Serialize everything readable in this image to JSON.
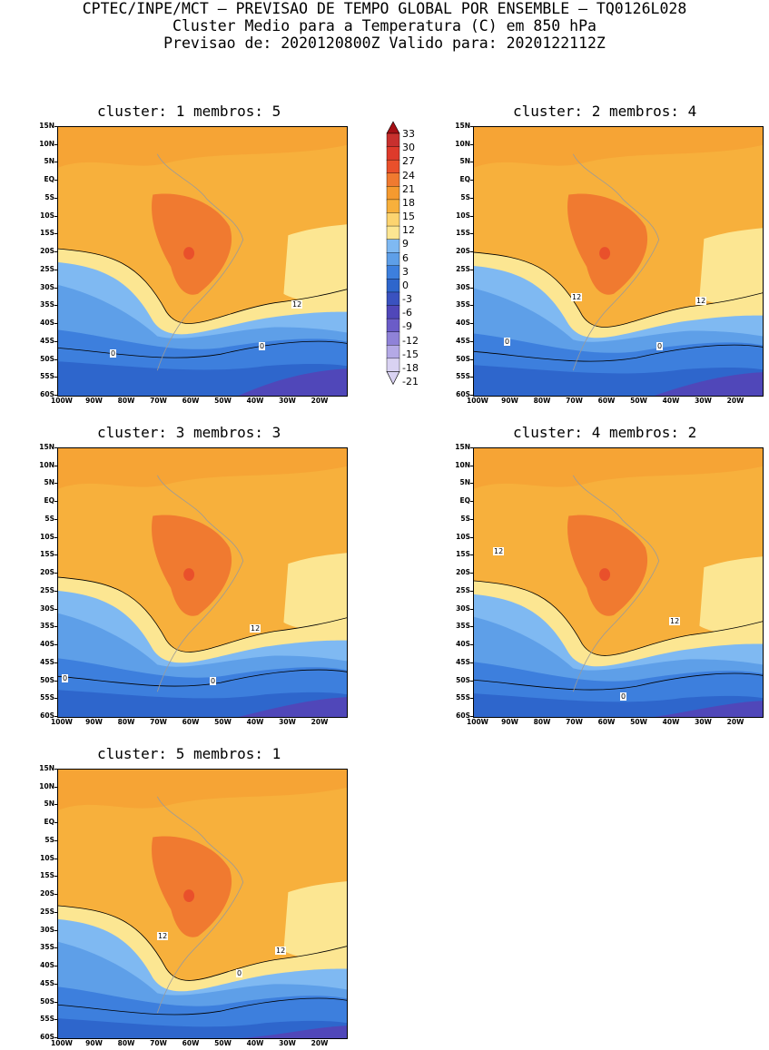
{
  "header": {
    "line1": "CPTEC/INPE/MCT – PREVISAO DE TEMPO GLOBAL POR ENSEMBLE – TQ0126L028",
    "line2": "Cluster Medio para a Temperatura (C) em 850 hPa",
    "line3": "Previsao de: 2020120800Z    Valido para: 2020122112Z"
  },
  "lat_labels": [
    "15N",
    "10N",
    "5N",
    "EQ",
    "5S",
    "10S",
    "15S",
    "20S",
    "25S",
    "30S",
    "35S",
    "40S",
    "45S",
    "50S",
    "55S",
    "60S"
  ],
  "lon_labels": [
    "100W",
    "90W",
    "80W",
    "70W",
    "60W",
    "50W",
    "40W",
    "30W",
    "20W"
  ],
  "colorbar": {
    "labels": [
      "33",
      "30",
      "27",
      "24",
      "21",
      "18",
      "15",
      "12",
      "9",
      "6",
      "3",
      "0",
      "-3",
      "-6",
      "-9",
      "-12",
      "-15",
      "-18",
      "-21"
    ],
    "colors": [
      "#a50f15",
      "#c8302e",
      "#de3a2b",
      "#e9502b",
      "#f07a30",
      "#f59a2f",
      "#f7b03c",
      "#fcd470",
      "#fce692",
      "#7fb9f2",
      "#5e9fe8",
      "#3d7fdd",
      "#2e66cc",
      "#3a52c0",
      "#5047b9",
      "#6b5cc8",
      "#8f82d8",
      "#b4a9e6",
      "#d9d2f2"
    ]
  },
  "panels": [
    {
      "title": "cluster: 1   membros: 5",
      "contour_labels": [
        "12",
        "0",
        "0"
      ]
    },
    {
      "title": "cluster: 2   membros: 4",
      "contour_labels": [
        "12",
        "12",
        "0",
        "0"
      ]
    },
    {
      "title": "cluster: 3   membros: 3",
      "contour_labels": [
        "12",
        "0",
        "0"
      ]
    },
    {
      "title": "cluster: 4   membros: 2",
      "contour_labels": [
        "12",
        "12",
        "0"
      ]
    },
    {
      "title": "cluster: 5   membros: 1",
      "contour_labels": [
        "12",
        "12",
        "0"
      ]
    }
  ]
}
